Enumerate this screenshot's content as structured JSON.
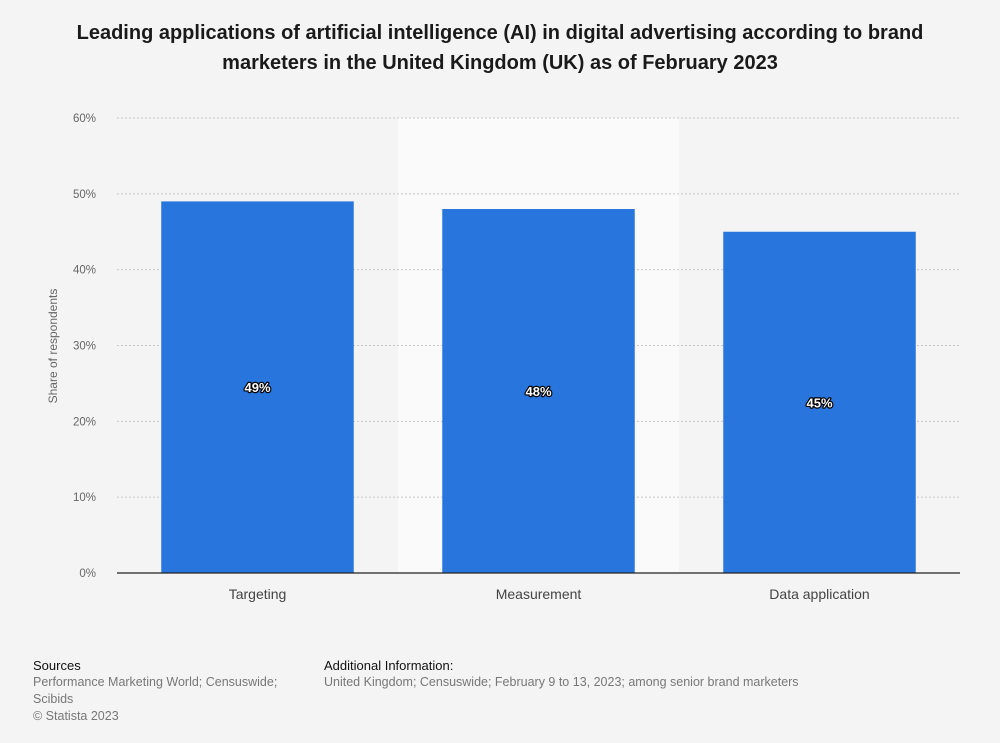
{
  "chart_data": {
    "type": "bar",
    "title": "Leading applications of artificial intelligence (AI) in digital advertising according to brand marketers in the United Kingdom (UK) as of February 2023",
    "categories": [
      "Targeting",
      "Measurement",
      "Data application"
    ],
    "values": [
      49,
      48,
      45
    ],
    "value_labels": [
      "49%",
      "48%",
      "45%"
    ],
    "ylabel": "Share of respondents",
    "xlabel": "",
    "ylim": [
      0,
      60
    ],
    "yticks": [
      "0%",
      "10%",
      "20%",
      "30%",
      "40%",
      "50%",
      "60%"
    ],
    "grid": true,
    "bar_color": "#2876dd",
    "highlight_band_color": "#fafafa"
  },
  "footer": {
    "sources_heading": "Sources",
    "sources_lines": [
      "Performance Marketing World; Censuswide;",
      "Scibids",
      "© Statista 2023"
    ],
    "additional_heading": "Additional Information:",
    "additional_text": "United Kingdom; Censuswide; February 9 to 13, 2023; among senior brand marketers"
  }
}
